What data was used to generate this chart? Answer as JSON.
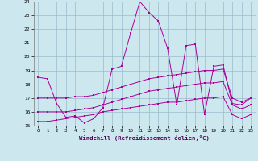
{
  "xlabel": "Windchill (Refroidissement éolien,°C)",
  "bg_color": "#cce8ee",
  "line_color": "#aa0099",
  "grid_color": "#99bbcc",
  "xlim_min": -0.5,
  "xlim_max": 23.5,
  "ylim_min": 15,
  "ylim_max": 24,
  "yticks": [
    15,
    16,
    17,
    18,
    19,
    20,
    21,
    22,
    23,
    24
  ],
  "xticks": [
    0,
    1,
    2,
    3,
    4,
    5,
    6,
    7,
    8,
    9,
    10,
    11,
    12,
    13,
    14,
    15,
    16,
    17,
    18,
    19,
    20,
    21,
    22,
    23
  ],
  "lines": [
    {
      "x": [
        0,
        1,
        2,
        3,
        4,
        5,
        6,
        7,
        8,
        9,
        10,
        11,
        12,
        13,
        14,
        15,
        16,
        17,
        18,
        19,
        20,
        21,
        22,
        23
      ],
      "y": [
        18.5,
        18.4,
        16.6,
        15.6,
        15.7,
        15.2,
        15.5,
        16.3,
        19.1,
        19.3,
        21.7,
        24.0,
        23.2,
        22.6,
        20.6,
        16.5,
        20.8,
        20.9,
        15.8,
        19.3,
        19.4,
        16.6,
        16.5,
        17.0
      ]
    },
    {
      "x": [
        0,
        1,
        2,
        3,
        4,
        5,
        6,
        7,
        8,
        9,
        10,
        11,
        12,
        13,
        14,
        15,
        16,
        17,
        18,
        19,
        20,
        21,
        22,
        23
      ],
      "y": [
        17.0,
        17.0,
        17.0,
        17.0,
        17.1,
        17.1,
        17.2,
        17.4,
        17.6,
        17.8,
        18.0,
        18.2,
        18.4,
        18.5,
        18.6,
        18.7,
        18.8,
        18.9,
        19.0,
        19.0,
        19.1,
        17.0,
        16.7,
        17.0
      ]
    },
    {
      "x": [
        0,
        1,
        2,
        3,
        4,
        5,
        6,
        7,
        8,
        9,
        10,
        11,
        12,
        13,
        14,
        15,
        16,
        17,
        18,
        19,
        20,
        21,
        22,
        23
      ],
      "y": [
        16.0,
        16.0,
        16.0,
        16.0,
        16.1,
        16.2,
        16.3,
        16.5,
        16.7,
        16.9,
        17.1,
        17.3,
        17.5,
        17.6,
        17.7,
        17.8,
        17.9,
        18.0,
        18.1,
        18.1,
        18.2,
        16.5,
        16.2,
        16.5
      ]
    },
    {
      "x": [
        0,
        1,
        2,
        3,
        4,
        5,
        6,
        7,
        8,
        9,
        10,
        11,
        12,
        13,
        14,
        15,
        16,
        17,
        18,
        19,
        20,
        21,
        22,
        23
      ],
      "y": [
        15.3,
        15.3,
        15.4,
        15.5,
        15.6,
        15.7,
        15.8,
        16.0,
        16.1,
        16.2,
        16.3,
        16.4,
        16.5,
        16.6,
        16.7,
        16.7,
        16.8,
        16.9,
        17.0,
        17.0,
        17.1,
        15.8,
        15.5,
        15.8
      ]
    }
  ]
}
